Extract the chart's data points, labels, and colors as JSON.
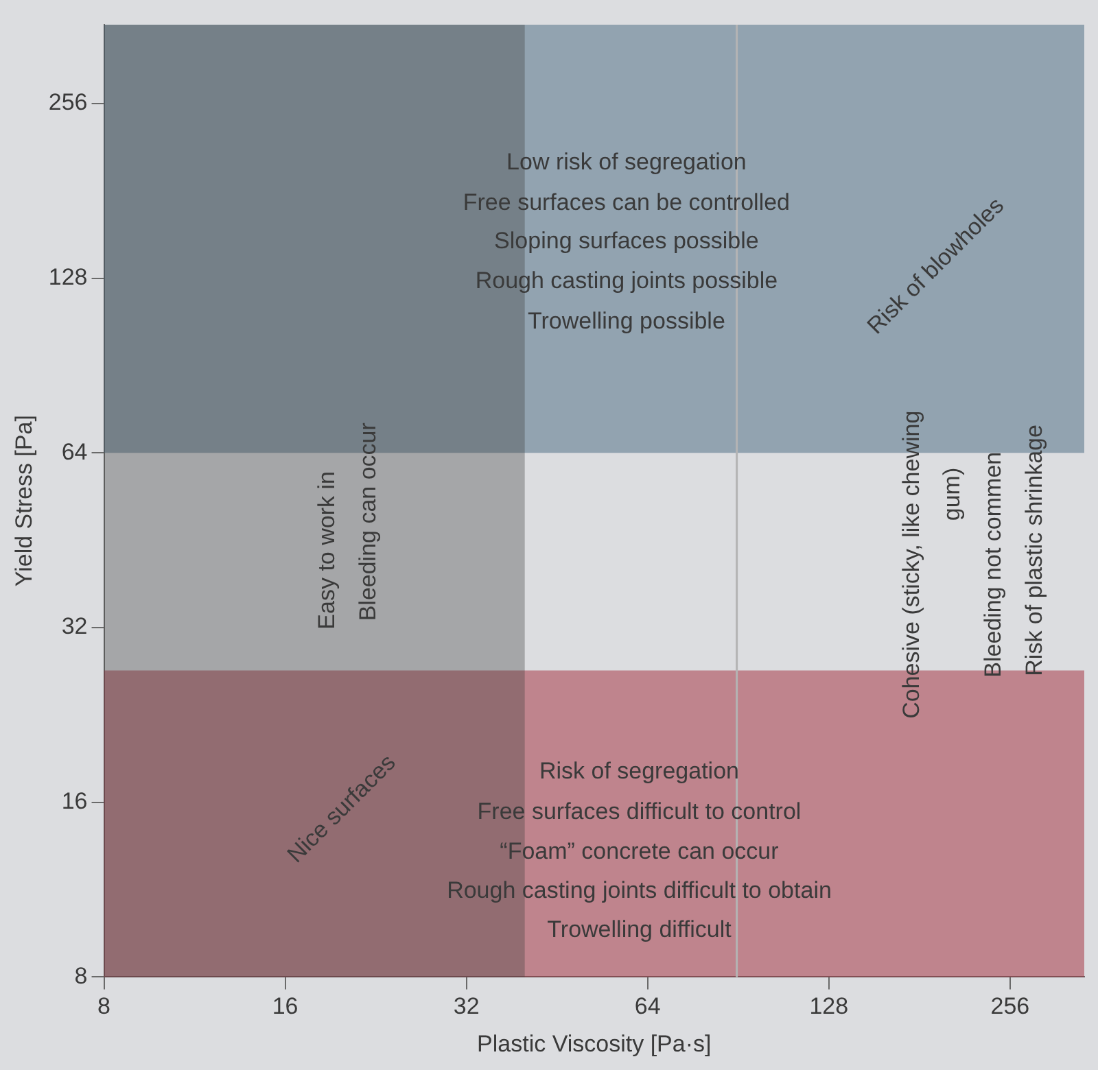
{
  "chart_data": {
    "type": "scatter",
    "xlabel": "Plastic Viscosity [Pa·s]",
    "ylabel": "Yield Stress [Pa]",
    "log": "xy",
    "grid": false,
    "xlim": [
      8,
      340
    ],
    "xticks": [
      8,
      16,
      32,
      64,
      128,
      256
    ],
    "ylim": [
      8,
      350
    ],
    "yticks": [
      8,
      16,
      32,
      64,
      128,
      256
    ],
    "bands": [
      {
        "axis": "y",
        "from": 64,
        "to": 350,
        "color": "#476a7f"
      },
      {
        "axis": "y",
        "from": 8,
        "to": 27,
        "color": "#a22b3a"
      },
      {
        "axis": "x",
        "from": 8,
        "to": 40,
        "color": "#404040"
      }
    ],
    "ref_lines": [
      {
        "axis": "x",
        "value": 90,
        "color": "#b4b4b4"
      }
    ],
    "annotations": [
      "Low risk of segregation",
      "Free surfaces can be controlled",
      "Sloping surfaces possible",
      "Rough casting joints possible",
      "Trowelling possible",
      "Risk of segregation",
      "Free surfaces difficult to control",
      "“Foam” concrete can occur",
      "Rough casting joints difficult to obtain",
      "Trowelling difficult",
      "Easy to work in",
      "Bleeding can occur",
      "Nice surfaces",
      "Risk of blowholes",
      "Cohesive (sticky, like chewing",
      "gum)",
      "Bleeding not commen",
      "Risk of plastic shrinkage"
    ]
  }
}
